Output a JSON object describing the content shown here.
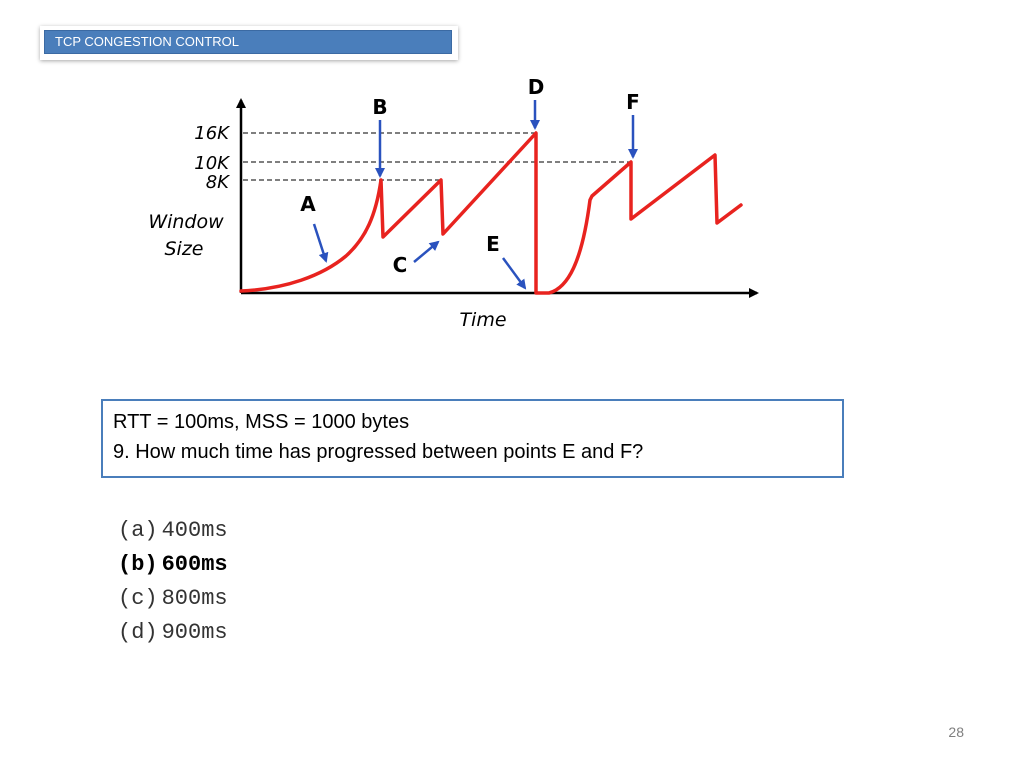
{
  "header": {
    "title": "TCP CONGESTION CONTROL"
  },
  "diagram": {
    "y_axis_label_line1": "Window",
    "y_axis_label_line2": "Size",
    "x_axis_label": "Time",
    "tick_labels": [
      "16K",
      "10K",
      "8K"
    ],
    "point_labels": [
      "A",
      "B",
      "C",
      "D",
      "E",
      "F"
    ],
    "curve_color": "#e8231f",
    "arrow_color": "#2a52be",
    "axis_color": "#000000"
  },
  "question": {
    "line1": "RTT = 100ms, MSS = 1000 bytes",
    "line2": "9. How much time has progressed between points E and F?"
  },
  "options": [
    {
      "label": "(a)",
      "text": "400ms",
      "selected": false
    },
    {
      "label": "(b)",
      "text": "600ms",
      "selected": true
    },
    {
      "label": "(c)",
      "text": "800ms",
      "selected": false
    },
    {
      "label": "(d)",
      "text": "900ms",
      "selected": false
    }
  ],
  "footer": {
    "page_number": "28"
  }
}
